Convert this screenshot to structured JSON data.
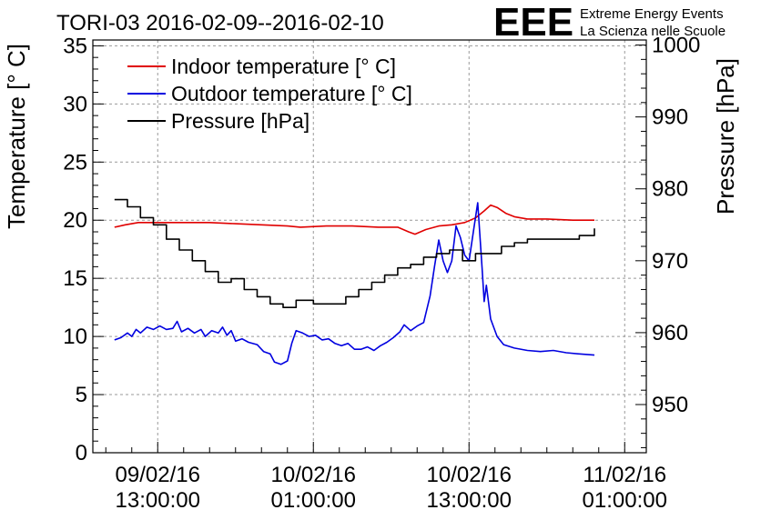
{
  "header": {
    "title": "TORI-03 2016-02-09--2016-02-10",
    "logo_text": "EEE",
    "logo_line1": "Extreme Energy Events",
    "logo_line2": "La Scienza nelle Scuole",
    "logo_color": "#1a1aff"
  },
  "chart_data": {
    "type": "line",
    "title": "TORI-03 2016-02-09--2016-02-10",
    "ylabel": "Temperature [° C]",
    "y2label": "Pressure [hPa]",
    "ylim": [
      0,
      35.5
    ],
    "y2lim": [
      943.3,
      1000.7
    ],
    "xlim": [
      "2016-02-09 08:00",
      "2016-02-11 02:40"
    ],
    "grid": true,
    "legend_position": "top-left",
    "x_tick_labels": [
      {
        "date": "09/02/16",
        "time": "13:00:00"
      },
      {
        "date": "10/02/16",
        "time": "01:00:00"
      },
      {
        "date": "10/02/16",
        "time": "13:00:00"
      },
      {
        "date": "11/02/16",
        "time": "01:00:00"
      }
    ],
    "x_ticks": [
      "2016-02-09 13:00",
      "2016-02-10 01:00",
      "2016-02-10 13:00",
      "2016-02-11 01:00"
    ],
    "y_ticks": [
      0,
      5,
      10,
      15,
      20,
      25,
      30,
      35
    ],
    "y2_ticks": [
      950,
      960,
      970,
      980,
      990,
      1000
    ],
    "series": [
      {
        "name": "Indoor temperature [° C]",
        "axis": "left",
        "color": "#e00000",
        "points": [
          [
            "2016-02-09 09:40",
            19.4
          ],
          [
            "2016-02-09 10:30",
            19.6
          ],
          [
            "2016-02-09 11:30",
            19.8
          ],
          [
            "2016-02-09 13:00",
            19.8
          ],
          [
            "2016-02-09 15:00",
            19.8
          ],
          [
            "2016-02-09 17:00",
            19.8
          ],
          [
            "2016-02-09 19:00",
            19.7
          ],
          [
            "2016-02-09 21:00",
            19.6
          ],
          [
            "2016-02-09 23:00",
            19.5
          ],
          [
            "2016-02-10 00:00",
            19.4
          ],
          [
            "2016-02-10 02:00",
            19.5
          ],
          [
            "2016-02-10 04:00",
            19.5
          ],
          [
            "2016-02-10 06:00",
            19.4
          ],
          [
            "2016-02-10 07:30",
            19.4
          ],
          [
            "2016-02-10 08:20",
            19.0
          ],
          [
            "2016-02-10 08:50",
            18.8
          ],
          [
            "2016-02-10 09:40",
            19.2
          ],
          [
            "2016-02-10 10:40",
            19.5
          ],
          [
            "2016-02-10 11:40",
            19.6
          ],
          [
            "2016-02-10 12:40",
            19.8
          ],
          [
            "2016-02-10 13:30",
            20.2
          ],
          [
            "2016-02-10 14:10",
            20.8
          ],
          [
            "2016-02-10 14:40",
            21.3
          ],
          [
            "2016-02-10 15:10",
            21.1
          ],
          [
            "2016-02-10 15:50",
            20.6
          ],
          [
            "2016-02-10 16:30",
            20.3
          ],
          [
            "2016-02-10 17:30",
            20.1
          ],
          [
            "2016-02-10 19:00",
            20.1
          ],
          [
            "2016-02-10 21:00",
            20.0
          ],
          [
            "2016-02-10 22:40",
            20.0
          ]
        ]
      },
      {
        "name": "Outdoor temperature [° C]",
        "axis": "left",
        "color": "#0000e0",
        "points": [
          [
            "2016-02-09 09:40",
            9.7
          ],
          [
            "2016-02-09 10:10",
            9.9
          ],
          [
            "2016-02-09 10:40",
            10.3
          ],
          [
            "2016-02-09 11:00",
            10.0
          ],
          [
            "2016-02-09 11:20",
            10.6
          ],
          [
            "2016-02-09 11:40",
            10.3
          ],
          [
            "2016-02-09 12:10",
            10.8
          ],
          [
            "2016-02-09 12:40",
            10.6
          ],
          [
            "2016-02-09 13:10",
            10.9
          ],
          [
            "2016-02-09 13:40",
            10.6
          ],
          [
            "2016-02-09 14:10",
            10.7
          ],
          [
            "2016-02-09 14:30",
            11.3
          ],
          [
            "2016-02-09 14:50",
            10.4
          ],
          [
            "2016-02-09 15:20",
            10.7
          ],
          [
            "2016-02-09 15:50",
            10.3
          ],
          [
            "2016-02-09 16:20",
            10.6
          ],
          [
            "2016-02-09 16:40",
            10.0
          ],
          [
            "2016-02-09 17:10",
            10.5
          ],
          [
            "2016-02-09 17:40",
            10.3
          ],
          [
            "2016-02-09 18:00",
            10.8
          ],
          [
            "2016-02-09 18:20",
            10.1
          ],
          [
            "2016-02-09 18:40",
            10.5
          ],
          [
            "2016-02-09 19:00",
            9.6
          ],
          [
            "2016-02-09 19:30",
            9.8
          ],
          [
            "2016-02-09 20:00",
            9.5
          ],
          [
            "2016-02-09 20:40",
            9.3
          ],
          [
            "2016-02-09 21:10",
            8.7
          ],
          [
            "2016-02-09 21:40",
            8.5
          ],
          [
            "2016-02-09 22:00",
            7.8
          ],
          [
            "2016-02-09 22:30",
            7.6
          ],
          [
            "2016-02-09 23:00",
            7.9
          ],
          [
            "2016-02-09 23:20",
            9.4
          ],
          [
            "2016-02-09 23:40",
            10.5
          ],
          [
            "2016-02-10 00:10",
            10.3
          ],
          [
            "2016-02-10 00:40",
            10.0
          ],
          [
            "2016-02-10 01:10",
            10.1
          ],
          [
            "2016-02-10 01:40",
            9.7
          ],
          [
            "2016-02-10 02:10",
            9.8
          ],
          [
            "2016-02-10 02:40",
            9.4
          ],
          [
            "2016-02-10 03:10",
            9.2
          ],
          [
            "2016-02-10 03:40",
            9.4
          ],
          [
            "2016-02-10 04:10",
            8.9
          ],
          [
            "2016-02-10 04:40",
            8.9
          ],
          [
            "2016-02-10 05:10",
            9.1
          ],
          [
            "2016-02-10 05:40",
            8.8
          ],
          [
            "2016-02-10 06:10",
            9.2
          ],
          [
            "2016-02-10 06:40",
            9.5
          ],
          [
            "2016-02-10 07:10",
            9.9
          ],
          [
            "2016-02-10 07:40",
            10.4
          ],
          [
            "2016-02-10 08:00",
            11.0
          ],
          [
            "2016-02-10 08:30",
            10.5
          ],
          [
            "2016-02-10 09:00",
            10.9
          ],
          [
            "2016-02-10 09:30",
            11.2
          ],
          [
            "2016-02-10 10:00",
            13.5
          ],
          [
            "2016-02-10 10:20",
            16.0
          ],
          [
            "2016-02-10 10:40",
            18.3
          ],
          [
            "2016-02-10 11:00",
            16.5
          ],
          [
            "2016-02-10 11:20",
            15.5
          ],
          [
            "2016-02-10 11:40",
            16.5
          ],
          [
            "2016-02-10 12:00",
            19.5
          ],
          [
            "2016-02-10 12:20",
            18.5
          ],
          [
            "2016-02-10 12:40",
            17.0
          ],
          [
            "2016-02-10 13:00",
            16.5
          ],
          [
            "2016-02-10 13:20",
            19.0
          ],
          [
            "2016-02-10 13:40",
            21.5
          ],
          [
            "2016-02-10 14:00",
            16.0
          ],
          [
            "2016-02-10 14:10",
            13.0
          ],
          [
            "2016-02-10 14:20",
            14.4
          ],
          [
            "2016-02-10 14:40",
            11.5
          ],
          [
            "2016-02-10 15:10",
            10.0
          ],
          [
            "2016-02-10 15:40",
            9.3
          ],
          [
            "2016-02-10 16:30",
            9.0
          ],
          [
            "2016-02-10 17:30",
            8.8
          ],
          [
            "2016-02-10 18:30",
            8.7
          ],
          [
            "2016-02-10 19:30",
            8.8
          ],
          [
            "2016-02-10 20:30",
            8.6
          ],
          [
            "2016-02-10 21:30",
            8.5
          ],
          [
            "2016-02-10 22:40",
            8.4
          ]
        ]
      },
      {
        "name": "Pressure [hPa]",
        "axis": "right",
        "color": "#000000",
        "points": [
          [
            "2016-02-09 09:40",
            978.5
          ],
          [
            "2016-02-09 10:40",
            977.5
          ],
          [
            "2016-02-09 11:40",
            976.0
          ],
          [
            "2016-02-09 12:40",
            975.0
          ],
          [
            "2016-02-09 13:40",
            973.0
          ],
          [
            "2016-02-09 14:40",
            971.5
          ],
          [
            "2016-02-09 15:40",
            970.0
          ],
          [
            "2016-02-09 16:40",
            968.5
          ],
          [
            "2016-02-09 17:40",
            967.0
          ],
          [
            "2016-02-09 18:40",
            967.5
          ],
          [
            "2016-02-09 19:40",
            966.0
          ],
          [
            "2016-02-09 20:40",
            965.0
          ],
          [
            "2016-02-09 21:40",
            964.0
          ],
          [
            "2016-02-09 22:40",
            963.5
          ],
          [
            "2016-02-09 23:40",
            964.5
          ],
          [
            "2016-02-10 01:00",
            964.0
          ],
          [
            "2016-02-10 02:30",
            964.0
          ],
          [
            "2016-02-10 03:30",
            965.0
          ],
          [
            "2016-02-10 04:30",
            966.0
          ],
          [
            "2016-02-10 05:30",
            967.0
          ],
          [
            "2016-02-10 06:30",
            968.0
          ],
          [
            "2016-02-10 07:30",
            969.0
          ],
          [
            "2016-02-10 08:30",
            969.5
          ],
          [
            "2016-02-10 09:30",
            970.5
          ],
          [
            "2016-02-10 10:30",
            971.0
          ],
          [
            "2016-02-10 11:30",
            971.5
          ],
          [
            "2016-02-10 12:30",
            970.0
          ],
          [
            "2016-02-10 13:30",
            971.0
          ],
          [
            "2016-02-10 14:30",
            971.0
          ],
          [
            "2016-02-10 15:30",
            972.0
          ],
          [
            "2016-02-10 16:30",
            972.5
          ],
          [
            "2016-02-10 17:30",
            973.0
          ],
          [
            "2016-02-10 19:00",
            973.0
          ],
          [
            "2016-02-10 20:30",
            973.0
          ],
          [
            "2016-02-10 21:30",
            973.5
          ],
          [
            "2016-02-10 22:40",
            974.5
          ]
        ]
      }
    ]
  }
}
